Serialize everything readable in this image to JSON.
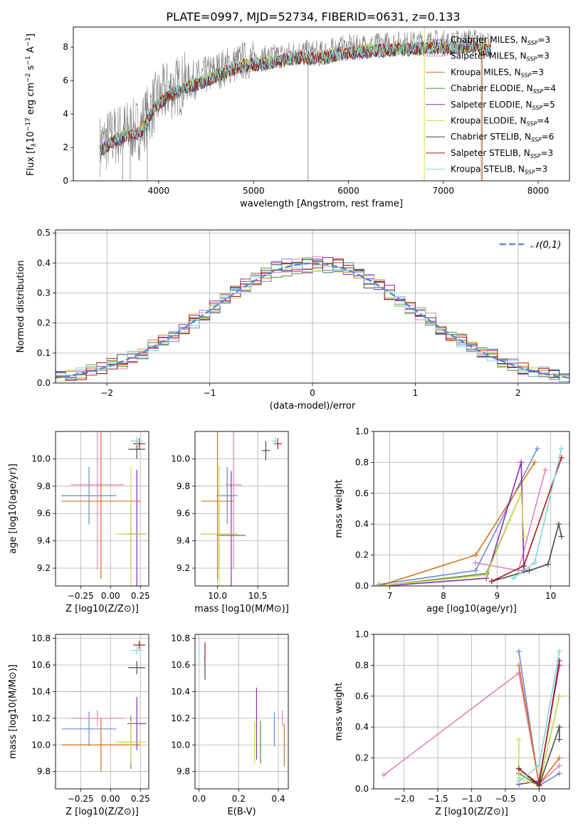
{
  "figure": {
    "title": "PLATE=0997, MJD=52734, FIBERID=0631, z=0.133"
  },
  "chart_data": [
    {
      "id": "spectrum",
      "type": "line",
      "xlabel": "wavelength [Angstrom, rest frame]",
      "ylabel": "Flux [f_λ 10^-17 erg cm^-2 s^-1 A^-1]",
      "xlim": [
        3100,
        8330
      ],
      "ylim": [
        0,
        9.2
      ],
      "xticks": [
        4000,
        5000,
        6000,
        7000,
        8000
      ],
      "yticks": [
        0,
        2,
        4,
        6,
        8
      ],
      "grid": false,
      "legend_position": "right",
      "legend": [
        {
          "name": "Chabrier MILES, N_SSP=3",
          "color": "#6a8ad8"
        },
        {
          "name": "Salpeter MILES, N_SSP=3",
          "color": "#e583b6"
        },
        {
          "name": "Kroupa MILES, N_SSP=3",
          "color": "#d5741f"
        },
        {
          "name": "Chabrier ELODIE, N_SSP=4",
          "color": "#4f8a44"
        },
        {
          "name": "Salpeter ELODIE, N_SSP=5",
          "color": "#8b2fb0"
        },
        {
          "name": "Kroupa ELODIE, N_SSP=4",
          "color": "#cde04f"
        },
        {
          "name": "Chabrier STELIB, N_SSP=6",
          "color": "#4a4a4a"
        },
        {
          "name": "Salpeter STELIB, N_SSP=3",
          "color": "#a51b1b"
        },
        {
          "name": "Kroupa STELIB, N_SSP=3",
          "color": "#7fd7db"
        }
      ],
      "observed_color": "#808080",
      "observed_x": [
        3380,
        3500,
        3650,
        3800,
        3950,
        4100,
        4300,
        4500,
        4700,
        4900,
        5100,
        5300,
        5500,
        5700,
        5900,
        6100,
        6300,
        6500,
        6700,
        6900,
        7100,
        7300,
        7500
      ],
      "observed_y": [
        2.1,
        2.6,
        3.0,
        3.1,
        4.6,
        5.4,
        5.9,
        6.3,
        6.8,
        7.2,
        7.3,
        7.5,
        7.7,
        7.6,
        7.9,
        8.0,
        8.1,
        8.2,
        8.2,
        8.3,
        8.2,
        8.4,
        8.1
      ]
    },
    {
      "id": "residuals",
      "type": "histogram",
      "xlabel": "(data-model)/error",
      "ylabel": "Normed distribution",
      "xlim": [
        -2.5,
        2.5
      ],
      "ylim": [
        0,
        0.51
      ],
      "xticks": [
        -2,
        -1,
        0,
        1,
        2
      ],
      "xticklabels": [
        "−2",
        "−1",
        "0",
        "1",
        "2"
      ],
      "yticks": [
        0.0,
        0.1,
        0.2,
        0.3,
        0.4,
        0.5
      ],
      "yticklabels": [
        "0.0",
        "0.1",
        "0.2",
        "0.3",
        "0.4",
        "0.5"
      ],
      "grid": true,
      "legend": [
        {
          "name": "𝒩(0,1)",
          "color": "#5b8bd6",
          "style": "dashed"
        }
      ],
      "legend_position": "top-right"
    },
    {
      "id": "age-vs-Z",
      "type": "errorbar",
      "xlabel": "Z [log10(Z/Z⊙)]",
      "ylabel": "age [log10(age/yr)]",
      "xlim": [
        -0.46,
        0.32
      ],
      "ylim": [
        9.07,
        10.2
      ],
      "xticks": [
        -0.25,
        0.0,
        0.25
      ],
      "xticklabels": [
        "−0.25",
        "0.00",
        "0.25"
      ],
      "yticks": [
        9.2,
        9.4,
        9.6,
        9.8,
        10.0
      ],
      "yticklabels": [
        "9.2",
        "9.4",
        "9.6",
        "9.8",
        "10.0"
      ],
      "grid": true,
      "points": [
        {
          "model": "Chabrier MILES",
          "x": -0.18,
          "xerr": 0.23,
          "y": 9.73,
          "yerr": 0.21
        },
        {
          "model": "Salpeter MILES",
          "x": -0.11,
          "xerr": 0.22,
          "y": 9.81,
          "yerr": 0.62
        },
        {
          "model": "Kroupa MILES",
          "x": -0.08,
          "xerr": 0.33,
          "y": 9.69,
          "yerr": 0.57
        },
        {
          "model": "Chabrier ELODIE",
          "x": 0.17,
          "xerr": 0.08,
          "y": 9.45,
          "yerr": 0.25
        },
        {
          "model": "Salpeter ELODIE",
          "x": 0.22,
          "xerr": 0.08,
          "y": 9.45,
          "yerr": 0.47
        },
        {
          "model": "Kroupa ELODIE",
          "x": 0.17,
          "xerr": 0.13,
          "y": 9.45,
          "yerr": 0.5
        },
        {
          "model": "Chabrier STELIB",
          "x": 0.22,
          "xerr": 0.07,
          "y": 10.07,
          "yerr": 0.07
        },
        {
          "model": "Salpeter STELIB",
          "x": 0.24,
          "xerr": 0.05,
          "y": 10.11,
          "yerr": 0.04
        },
        {
          "model": "Kroupa STELIB",
          "x": 0.22,
          "xerr": 0.05,
          "y": 10.13,
          "yerr": 0.03
        }
      ]
    },
    {
      "id": "age-vs-mass",
      "type": "errorbar",
      "xlabel": "mass [log10(M/M⊙)]",
      "ylabel": "",
      "xlim": [
        9.72,
        10.88
      ],
      "ylim": [
        9.07,
        10.2
      ],
      "xticks": [
        10.0,
        10.5
      ],
      "xticklabels": [
        "10.0",
        "10.5"
      ],
      "yticks": [
        9.2,
        9.4,
        9.6,
        9.8,
        10.0
      ],
      "yticklabels": [
        "9.2",
        "9.4",
        "9.6",
        "9.8",
        "10.0"
      ],
      "grid": true,
      "points": [
        {
          "model": "Chabrier MILES",
          "x": 10.12,
          "xerr": 0.13,
          "y": 9.73,
          "yerr": 0.21
        },
        {
          "model": "Salpeter MILES",
          "x": 10.2,
          "xerr": 0.1,
          "y": 9.81,
          "yerr": 0.62
        },
        {
          "model": "Kroupa MILES",
          "x": 10.0,
          "xerr": 0.2,
          "y": 9.69,
          "yerr": 0.57
        },
        {
          "model": "Chabrier ELODIE",
          "x": 10.02,
          "xerr": 0.23,
          "y": 9.45,
          "yerr": 0.25
        },
        {
          "model": "Salpeter ELODIE",
          "x": 10.17,
          "xerr": 0.18,
          "y": 9.44,
          "yerr": 0.47
        },
        {
          "model": "Kroupa ELODIE",
          "x": 10.02,
          "xerr": 0.23,
          "y": 9.45,
          "yerr": 0.5
        },
        {
          "model": "Chabrier STELIB",
          "x": 10.6,
          "xerr": 0.05,
          "y": 10.06,
          "yerr": 0.07
        },
        {
          "model": "Salpeter STELIB",
          "x": 10.75,
          "xerr": 0.05,
          "y": 10.11,
          "yerr": 0.04
        },
        {
          "model": "Kroupa STELIB",
          "x": 10.72,
          "xerr": 0.04,
          "y": 10.13,
          "yerr": 0.03
        }
      ]
    },
    {
      "id": "weight-vs-age",
      "type": "line",
      "xlabel": "age [log10(age/yr)]",
      "ylabel": "mass weight",
      "xlim": [
        6.7,
        10.35
      ],
      "ylim": [
        0,
        1
      ],
      "xticks": [
        7,
        8,
        9,
        10
      ],
      "yticks": [
        0.0,
        0.2,
        0.4,
        0.6,
        0.8,
        1.0
      ],
      "yticklabels": [
        "0.0",
        "0.2",
        "0.4",
        "0.6",
        "0.8",
        "1.0"
      ],
      "grid": true,
      "series": [
        {
          "model": "Chabrier MILES",
          "x": [
            6.8,
            8.6,
            9.75
          ],
          "y": [
            0.01,
            0.1,
            0.89
          ]
        },
        {
          "model": "Salpeter MILES",
          "x": [
            8.6,
            9.4,
            9.9
          ],
          "y": [
            0.15,
            0.1,
            0.75
          ]
        },
        {
          "model": "Kroupa MILES",
          "x": [
            6.8,
            8.6,
            9.7
          ],
          "y": [
            0.0,
            0.2,
            0.8
          ]
        },
        {
          "model": "Chabrier ELODIE",
          "x": [
            6.8,
            8.8,
            9.45
          ],
          "y": [
            0.0,
            0.08,
            0.6
          ]
        },
        {
          "model": "Salpeter ELODIE",
          "x": [
            6.9,
            8.8,
            9.45,
            9.5
          ],
          "y": [
            0.0,
            0.05,
            0.8,
            0.1
          ]
        },
        {
          "model": "Kroupa ELODIE",
          "x": [
            6.8,
            8.8,
            9.45,
            9.5
          ],
          "y": [
            0.0,
            0.07,
            0.6,
            0.32
          ]
        },
        {
          "model": "Chabrier STELIB",
          "x": [
            8.9,
            9.6,
            9.95,
            10.15,
            10.2
          ],
          "y": [
            0.03,
            0.1,
            0.14,
            0.4,
            0.32
          ]
        },
        {
          "model": "Salpeter STELIB",
          "x": [
            8.9,
            9.5,
            10.2
          ],
          "y": [
            0.03,
            0.13,
            0.83
          ]
        },
        {
          "model": "Kroupa STELIB",
          "x": [
            9.3,
            9.7,
            10.2
          ],
          "y": [
            0.05,
            0.15,
            0.89
          ]
        }
      ]
    },
    {
      "id": "mass-vs-Z",
      "type": "errorbar",
      "xlabel": "Z [log10(Z/Z⊙)]",
      "ylabel": "mass [log10(M/M⊙)]",
      "xlim": [
        -0.46,
        0.32
      ],
      "ylim": [
        9.67,
        10.83
      ],
      "xticks": [
        -0.25,
        0.0,
        0.25
      ],
      "xticklabels": [
        "−0.25",
        "0.00",
        "0.25"
      ],
      "yticks": [
        9.8,
        10.0,
        10.2,
        10.4,
        10.6,
        10.8
      ],
      "yticklabels": [
        "9.8",
        "10.0",
        "10.2",
        "10.4",
        "10.6",
        "10.8"
      ],
      "grid": true,
      "points": [
        {
          "model": "Chabrier MILES",
          "x": -0.18,
          "xerr": 0.23,
          "y": 10.12,
          "yerr": 0.13
        },
        {
          "model": "Salpeter MILES",
          "x": -0.11,
          "xerr": 0.22,
          "y": 10.2,
          "yerr": 0.06
        },
        {
          "model": "Kroupa MILES",
          "x": -0.08,
          "xerr": 0.33,
          "y": 10.0,
          "yerr": 0.2
        },
        {
          "model": "Chabrier ELODIE",
          "x": 0.17,
          "xerr": 0.08,
          "y": 10.02,
          "yerr": 0.2
        },
        {
          "model": "Salpeter ELODIE",
          "x": 0.22,
          "xerr": 0.08,
          "y": 10.16,
          "yerr": 0.2
        },
        {
          "model": "Kroupa ELODIE",
          "x": 0.17,
          "xerr": 0.13,
          "y": 10.02,
          "yerr": 0.16
        },
        {
          "model": "Chabrier STELIB",
          "x": 0.22,
          "xerr": 0.07,
          "y": 10.58,
          "yerr": 0.05
        },
        {
          "model": "Salpeter STELIB",
          "x": 0.24,
          "xerr": 0.05,
          "y": 10.75,
          "yerr": 0.03
        },
        {
          "model": "Kroupa STELIB",
          "x": 0.22,
          "xerr": 0.05,
          "y": 10.71,
          "yerr": 0.03
        }
      ]
    },
    {
      "id": "mass-vs-ebv",
      "type": "errorbar",
      "xlabel": "E(B-V)",
      "ylabel": "",
      "xlim": [
        -0.02,
        0.45
      ],
      "ylim": [
        9.67,
        10.83
      ],
      "xticks": [
        0.0,
        0.2,
        0.4
      ],
      "xticklabels": [
        "0.0",
        "0.2",
        "0.4"
      ],
      "yticks": [
        9.8,
        10.0,
        10.2,
        10.4,
        10.6,
        10.8
      ],
      "yticklabels": [
        "9.8",
        "10.0",
        "10.2",
        "10.4",
        "10.6",
        "10.8"
      ],
      "grid": true,
      "points": [
        {
          "model": "Chabrier MILES",
          "x": 0.38,
          "xerr": 0,
          "y": 10.12,
          "yerr": 0.13
        },
        {
          "model": "Salpeter MILES",
          "x": 0.42,
          "xerr": 0,
          "y": 10.2,
          "yerr": 0.06
        },
        {
          "model": "Kroupa MILES",
          "x": 0.43,
          "xerr": 0,
          "y": 10.0,
          "yerr": 0.16
        },
        {
          "model": "Chabrier ELODIE",
          "x": 0.31,
          "xerr": 0,
          "y": 10.02,
          "yerr": 0.16
        },
        {
          "model": "Salpeter ELODIE",
          "x": 0.29,
          "xerr": 0,
          "y": 10.16,
          "yerr": 0.27
        },
        {
          "model": "Kroupa ELODIE",
          "x": 0.28,
          "xerr": 0,
          "y": 10.02,
          "yerr": 0.16
        },
        {
          "model": "Chabrier STELIB",
          "x": 0.03,
          "xerr": 0,
          "y": 10.58,
          "yerr": 0.09
        },
        {
          "model": "Salpeter STELIB",
          "x": 0.03,
          "xerr": 0,
          "y": 10.7,
          "yerr": 0.07
        },
        {
          "model": "Kroupa STELIB",
          "x": 0.0,
          "xerr": 0,
          "y": 10.7,
          "yerr": 0.06
        }
      ]
    },
    {
      "id": "weight-vs-Z",
      "type": "line",
      "xlabel": "Z [log10(Z/Z⊙)]",
      "ylabel": "mass weight",
      "xlim": [
        -2.45,
        0.45
      ],
      "ylim": [
        0,
        1
      ],
      "xticks": [
        -2.0,
        -1.5,
        -1.0,
        -0.5,
        0.0
      ],
      "xticklabels": [
        "−2.0",
        "−1.5",
        "−1.0",
        "−0.5",
        "0.0"
      ],
      "yticks": [
        0.0,
        0.2,
        0.4,
        0.6,
        0.8,
        1.0
      ],
      "yticklabels": [
        "0.0",
        "0.2",
        "0.4",
        "0.6",
        "0.8",
        "1.0"
      ],
      "grid": true,
      "series": [
        {
          "model": "Chabrier MILES",
          "x": [
            -0.3,
            0.0,
            0.3
          ],
          "y": [
            0.89,
            0.02,
            0.1
          ]
        },
        {
          "model": "Salpeter MILES",
          "x": [
            -2.3,
            -0.3,
            0.0,
            0.3
          ],
          "y": [
            0.09,
            0.75,
            0.03,
            0.15
          ]
        },
        {
          "model": "Kroupa MILES",
          "x": [
            -0.3,
            0.0,
            0.3
          ],
          "y": [
            0.8,
            0.03,
            0.2
          ]
        },
        {
          "model": "Chabrier ELODIE",
          "x": [
            -0.3,
            0.0,
            0.3
          ],
          "y": [
            0.1,
            0.02,
            0.6
          ]
        },
        {
          "model": "Salpeter ELODIE",
          "x": [
            -0.3,
            0.0,
            0.3
          ],
          "y": [
            0.03,
            0.05,
            0.8
          ]
        },
        {
          "model": "Kroupa ELODIE",
          "x": [
            -0.3,
            -0.3,
            0.0,
            0.3
          ],
          "y": [
            0.32,
            0.07,
            0.02,
            0.6
          ]
        },
        {
          "model": "Chabrier STELIB",
          "x": [
            -0.3,
            0.0,
            0.3,
            0.3
          ],
          "y": [
            0.13,
            0.02,
            0.4,
            0.32
          ]
        },
        {
          "model": "Salpeter STELIB",
          "x": [
            -0.3,
            0.0,
            0.3
          ],
          "y": [
            0.13,
            0.03,
            0.83
          ]
        },
        {
          "model": "Kroupa STELIB",
          "x": [
            -0.3,
            0.0,
            0.3
          ],
          "y": [
            0.05,
            0.15,
            0.89
          ]
        }
      ]
    }
  ]
}
